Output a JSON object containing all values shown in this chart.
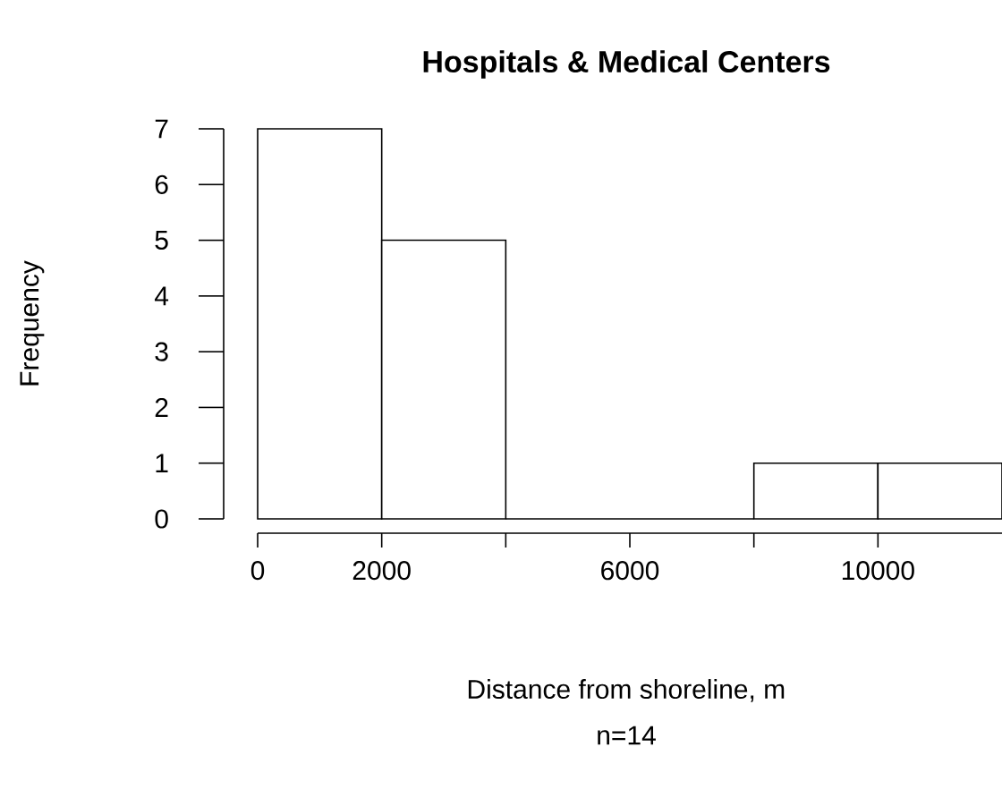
{
  "chart_data": {
    "type": "histogram",
    "title": "Hospitals & Medical Centers",
    "xlabel": "Distance from shoreline, m",
    "ylabel": "Frequency",
    "annotations": [
      "n=14"
    ],
    "bins": [
      0,
      2000,
      4000,
      6000,
      8000,
      10000,
      12000
    ],
    "values": [
      7,
      5,
      0,
      0,
      1,
      1
    ],
    "xlim": [
      0,
      12000
    ],
    "ylim": [
      0,
      7
    ],
    "xticks": [
      0,
      2000,
      {
        "value": 4000,
        "label": null
      },
      6000,
      {
        "value": 8000,
        "label": null
      },
      10000
    ],
    "yticks": [
      0,
      1,
      2,
      3,
      4,
      5,
      6,
      7
    ]
  }
}
